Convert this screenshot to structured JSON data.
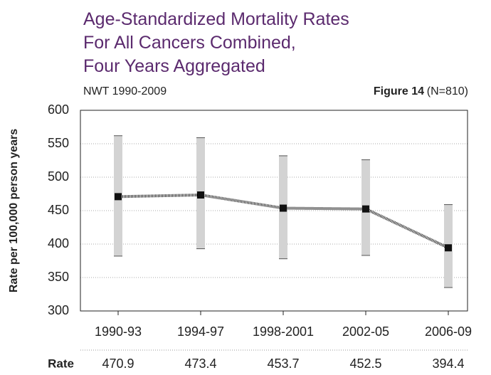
{
  "chart_data": {
    "type": "line",
    "title_lines": [
      "Age-Standardized Mortality Rates",
      "For All Cancers Combined,",
      "Four Years Aggregated"
    ],
    "subtitle": "NWT 1990-2009",
    "figure": "Figure 14",
    "figure_note": "(N=810)",
    "y_label": "Rate per 100,000 person years",
    "categories": [
      "1990-93",
      "1994-97",
      "1998-2001",
      "2002-05",
      "2006-09"
    ],
    "values": [
      470.9,
      473.4,
      453.7,
      452.5,
      394.4
    ],
    "lower": [
      382,
      393,
      378,
      383,
      335
    ],
    "upper": [
      562,
      559,
      532,
      526,
      459
    ],
    "table_label": "Rate",
    "ylim": [
      300,
      600
    ],
    "yticks": [
      300,
      350,
      400,
      450,
      500,
      550,
      600
    ],
    "grid": true,
    "color": "#222222",
    "error_color": "#d3d3d3"
  }
}
